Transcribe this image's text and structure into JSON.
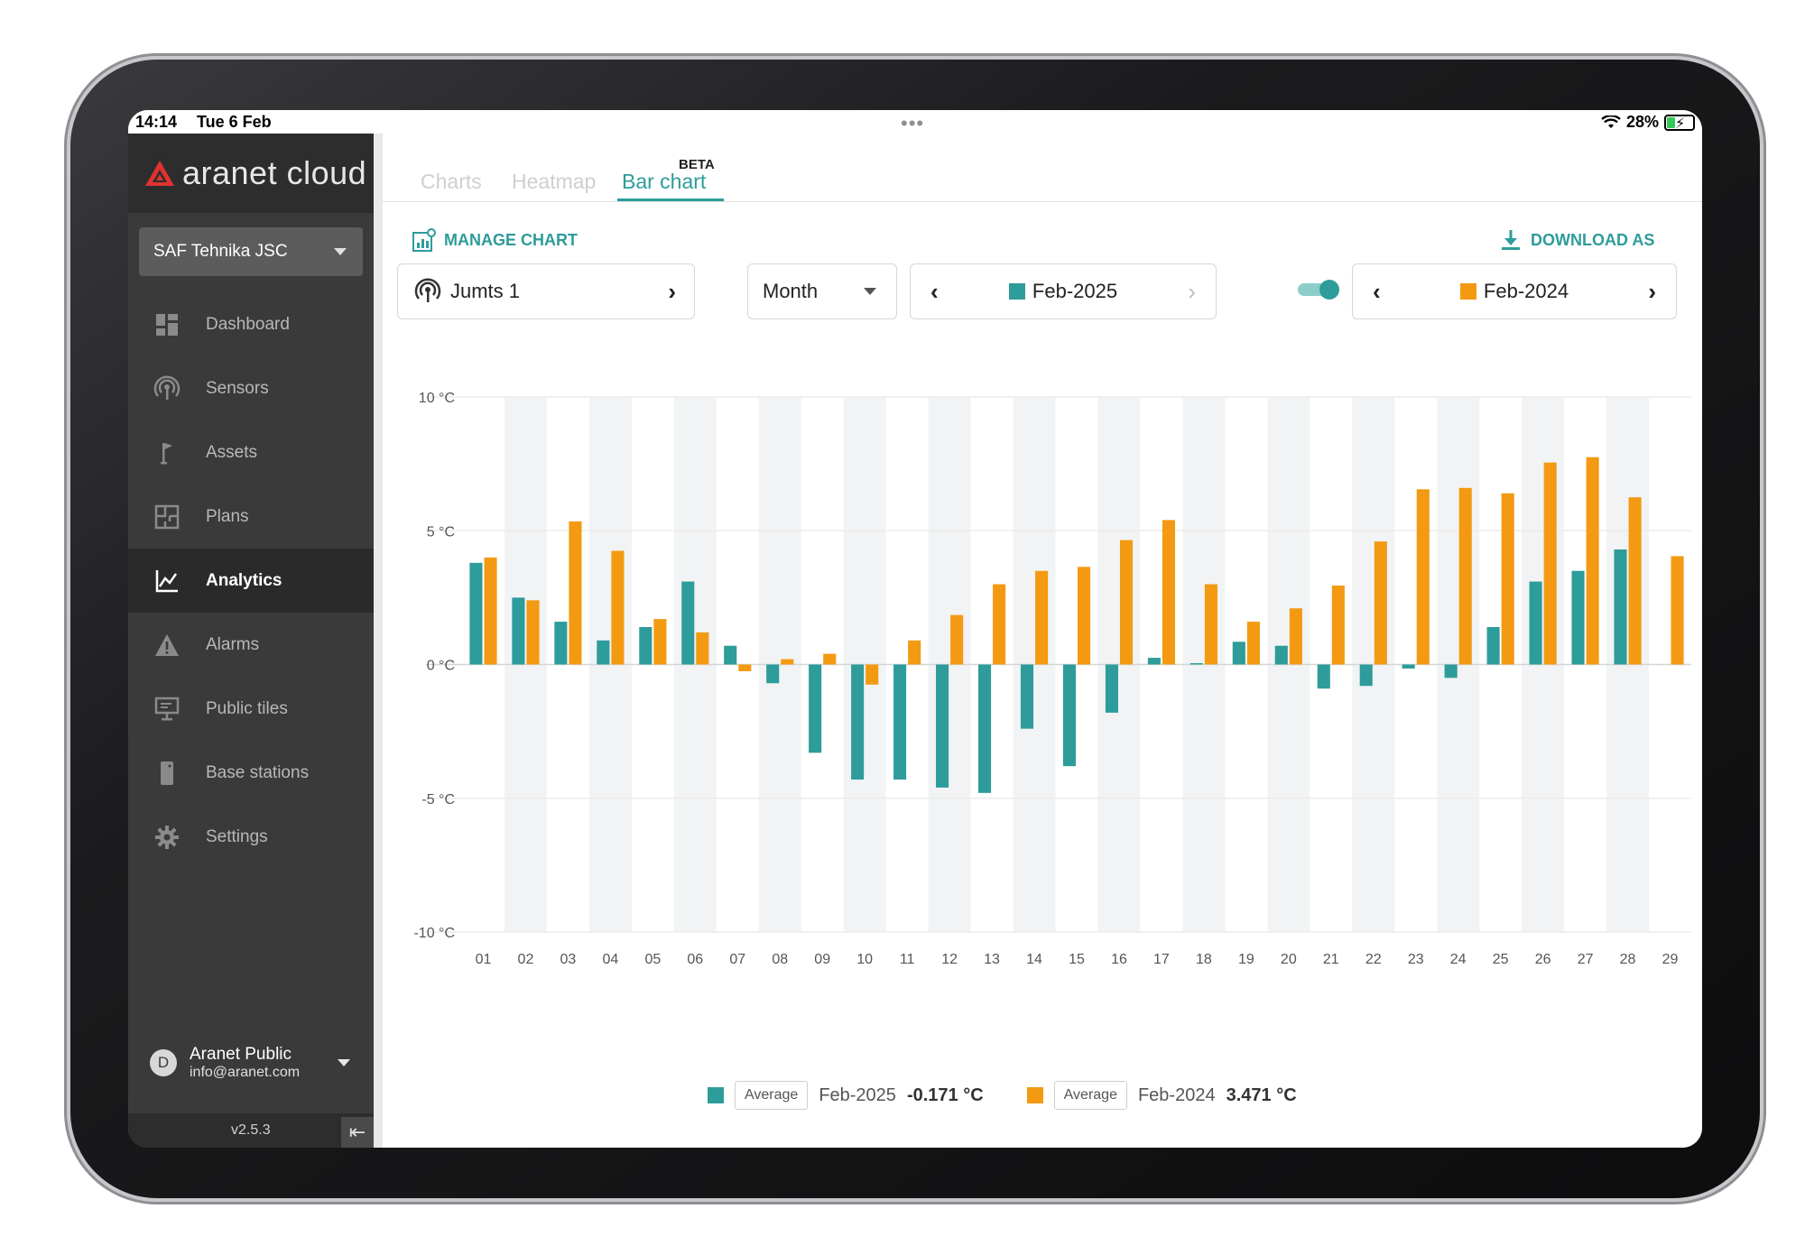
{
  "status_bar": {
    "time": "14:14",
    "date": "Tue 6 Feb",
    "dots": "•••",
    "battery": "28%"
  },
  "brand": {
    "name": "aranet cloud"
  },
  "sidebar": {
    "org": "SAF Tehnika JSC",
    "items": [
      {
        "label": "Dashboard",
        "icon": "dashboard-icon"
      },
      {
        "label": "Sensors",
        "icon": "sensor-icon"
      },
      {
        "label": "Assets",
        "icon": "flag-icon"
      },
      {
        "label": "Plans",
        "icon": "floorplan-icon"
      },
      {
        "label": "Analytics",
        "icon": "chart-line-icon",
        "active": true
      },
      {
        "label": "Alarms",
        "icon": "warning-icon"
      },
      {
        "label": "Public tiles",
        "icon": "monitor-icon"
      },
      {
        "label": "Base stations",
        "icon": "base-station-icon"
      },
      {
        "label": "Settings",
        "icon": "gear-icon"
      }
    ],
    "user": {
      "initial": "D",
      "name": "Aranet Public",
      "email": "info@aranet.com"
    },
    "version": "v2.5.3"
  },
  "tabs": {
    "charts": "Charts",
    "heatmap": "Heatmap",
    "bar_chart": "Bar chart",
    "beta": "BETA"
  },
  "toolbar": {
    "manage": "MANAGE CHART",
    "download": "DOWNLOAD AS"
  },
  "controls": {
    "sensor": "Jumts 1",
    "period": "Month",
    "primary_period": "Feb-2025",
    "compare_period": "Feb-2024",
    "compare_enabled": true
  },
  "colors": {
    "teal": "#2d9c9a",
    "orange": "#f39a12",
    "sidebar": "#3a3a3a"
  },
  "legend": {
    "series1_tag": "Average",
    "series1_name": "Feb-2025",
    "series1_value": "-0.171 °C",
    "series2_tag": "Average",
    "series2_name": "Feb-2024",
    "series2_value": "3.471 °C"
  },
  "chart_data": {
    "type": "bar",
    "y_ticks": [
      {
        "value": 10,
        "label": "10 °C"
      },
      {
        "value": 5,
        "label": "5 °C"
      },
      {
        "value": 0,
        "label": "0 °C"
      },
      {
        "value": -5,
        "label": "-5 °C"
      },
      {
        "value": -10,
        "label": "-10 °C"
      }
    ],
    "ylim": [
      -10,
      10
    ],
    "categories": [
      "01",
      "02",
      "03",
      "04",
      "05",
      "06",
      "07",
      "08",
      "09",
      "10",
      "11",
      "12",
      "13",
      "14",
      "15",
      "16",
      "17",
      "18",
      "19",
      "20",
      "21",
      "22",
      "23",
      "24",
      "25",
      "26",
      "27",
      "28",
      "29"
    ],
    "series": [
      {
        "name": "Feb-2025",
        "color": "#2d9c9a",
        "values": [
          3.8,
          2.5,
          1.6,
          0.9,
          1.4,
          3.1,
          0.7,
          -0.7,
          -3.3,
          -4.3,
          -4.3,
          -4.6,
          -4.8,
          -2.4,
          -3.8,
          -1.8,
          0.25,
          0.05,
          0.85,
          0.7,
          -0.9,
          -0.8,
          -0.15,
          -0.5,
          1.4,
          3.1,
          3.5,
          4.3,
          null
        ]
      },
      {
        "name": "Feb-2024",
        "color": "#f39a12",
        "values": [
          4.0,
          2.4,
          5.35,
          4.25,
          1.7,
          1.2,
          -0.25,
          0.2,
          0.4,
          -0.75,
          0.9,
          1.85,
          3.0,
          3.5,
          3.65,
          4.65,
          5.4,
          3.0,
          1.6,
          2.1,
          2.95,
          4.6,
          6.55,
          6.6,
          6.4,
          7.55,
          7.75,
          6.25,
          4.05
        ]
      }
    ],
    "grid": true
  }
}
